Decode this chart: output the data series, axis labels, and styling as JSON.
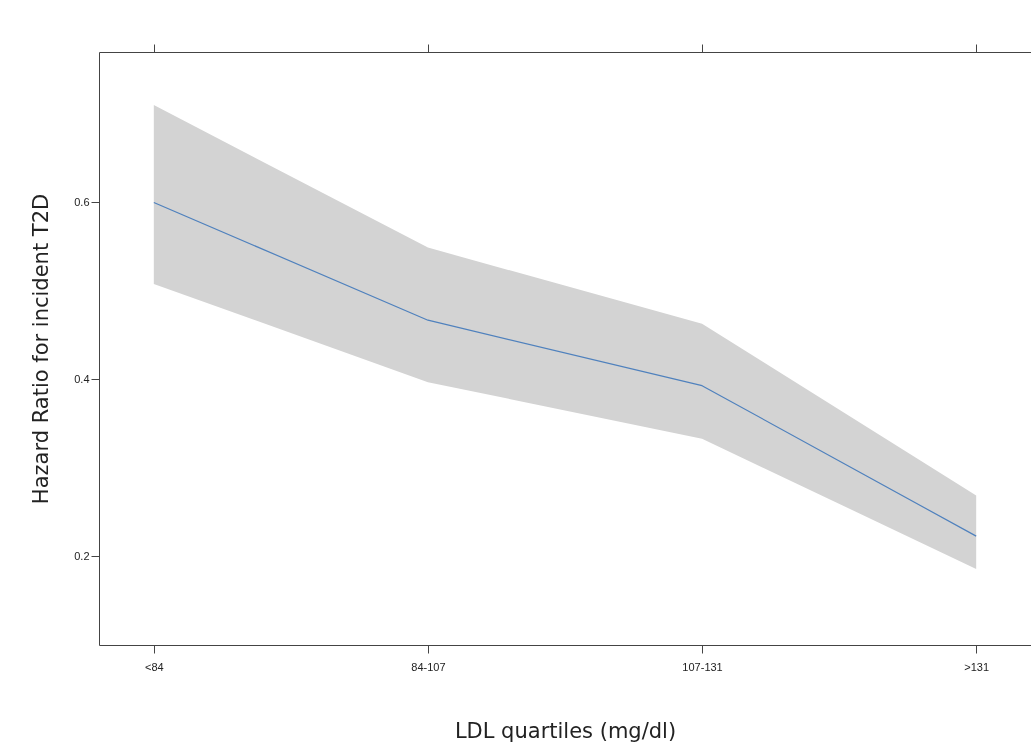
{
  "chart_data": {
    "type": "line",
    "xlabel": "LDL quartiles (mg/dl)",
    "ylabel": "Hazard Ratio for incident T2D",
    "categories": [
      "<84",
      "84-107",
      "107-131",
      ">131"
    ],
    "series": [
      {
        "color": "#4f81bd",
        "values": [
          0.6,
          0.467,
          0.393,
          0.223
        ],
        "lower": [
          0.508,
          0.397,
          0.333,
          0.186
        ],
        "upper": [
          0.71,
          0.549,
          0.463,
          0.269
        ]
      }
    ],
    "ylim": [
      0.1,
      0.77
    ],
    "yticks": [
      0.2,
      0.4,
      0.6
    ],
    "grid": false,
    "marker": "none",
    "line_style": "solid"
  }
}
